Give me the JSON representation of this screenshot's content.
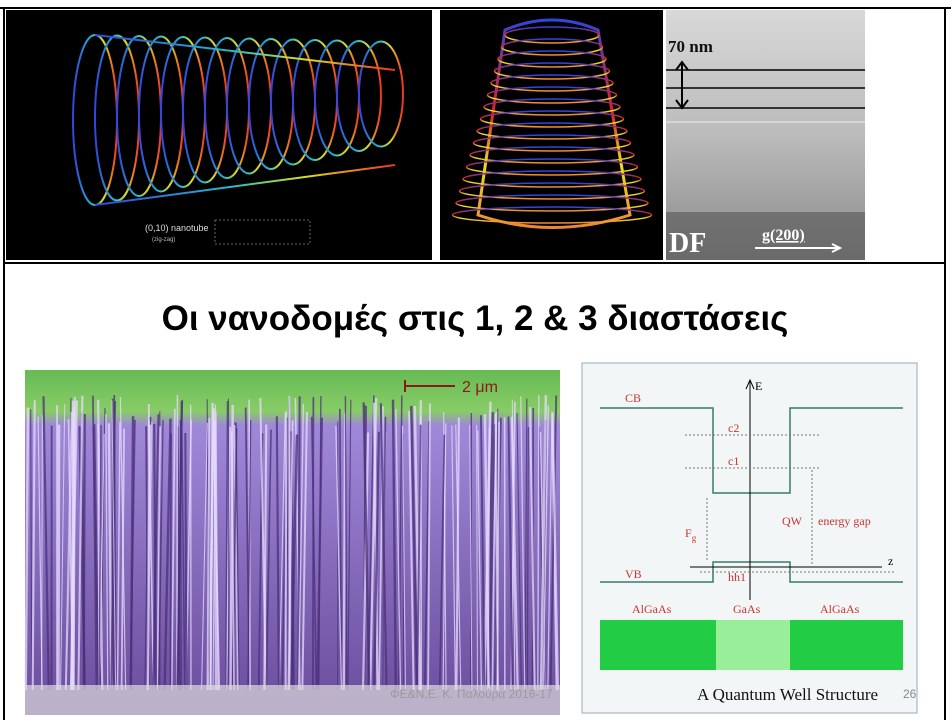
{
  "images": {
    "nanotube": {
      "label": "(0,10) nanotube",
      "sublabel": "(zig-zag)"
    },
    "tem": {
      "scale": "70 nm",
      "mode": "DF",
      "vector": "g(200)"
    },
    "nanowires": {
      "scale": "2 μm"
    }
  },
  "title": "Οι νανοδομές στις 1, 2 & 3 διαστάσεις",
  "quantum_well": {
    "axis_e": "E",
    "axis_z": "z",
    "cb": "CB",
    "vb": "VB",
    "c2": "c2",
    "c1": "c1",
    "hh1": "hh1",
    "fg": "F",
    "fg_sub": "g",
    "qw": "QW",
    "energy_gap": "energy gap",
    "layers": [
      "AlGaAs",
      "GaAs",
      "AlGaAs"
    ],
    "caption": "A Quantum Well Structure"
  },
  "footer": {
    "credit": "ΦΕ&Ν,Ε. Κ. Παλούρα 2016-17",
    "page": "26"
  }
}
